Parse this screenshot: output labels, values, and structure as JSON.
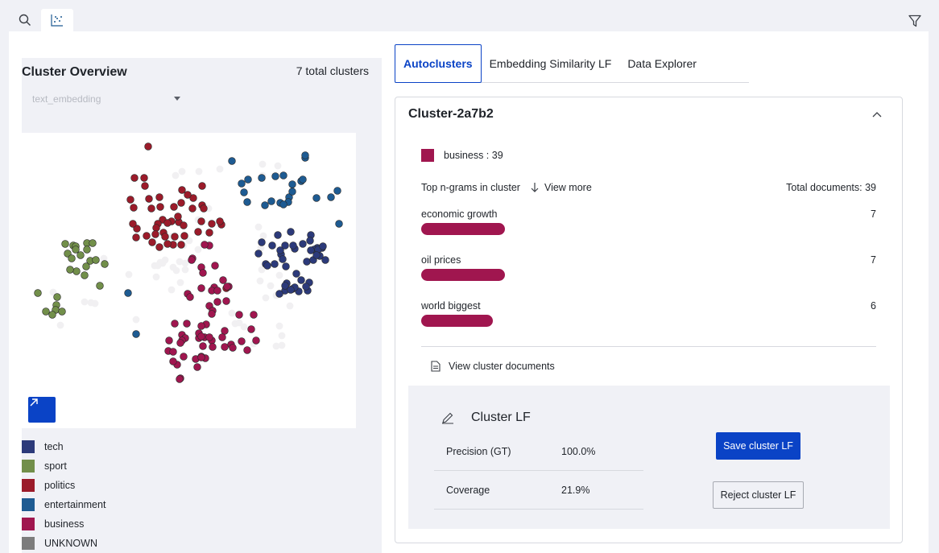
{
  "toolbar": {
    "search_icon": "search-icon",
    "scatter_icon": "scatter-plot-icon",
    "filter_icon": "filter-icon"
  },
  "overview": {
    "title": "Cluster Overview",
    "count_label": "7 total clusters",
    "embedding_select": {
      "value": "text_embedding"
    }
  },
  "legend": [
    {
      "label": "tech",
      "color": "#2c3a7a"
    },
    {
      "label": "sport",
      "color": "#728f4a"
    },
    {
      "label": "politics",
      "color": "#9b1b2a"
    },
    {
      "label": "entertainment",
      "color": "#1e5b92"
    },
    {
      "label": "business",
      "color": "#a0164f"
    },
    {
      "label": "UNKNOWN",
      "color": "#7c7c7c"
    }
  ],
  "chart_data": {
    "type": "scatter",
    "title": "",
    "xlabel": "",
    "ylabel": "",
    "grid": false,
    "series": [
      {
        "name": "sport",
        "color": "#728f4a",
        "points": [
          [
            64,
            140
          ],
          [
            67,
            141
          ],
          [
            81,
            137
          ],
          [
            88,
            137
          ],
          [
            54,
            138
          ],
          [
            57,
            150
          ],
          [
            73,
            152
          ],
          [
            67,
            145
          ],
          [
            81,
            145
          ],
          [
            62,
            156
          ],
          [
            85,
            159
          ],
          [
            92,
            158
          ],
          [
            103,
            163
          ],
          [
            80,
            166
          ],
          [
            68,
            172
          ],
          [
            20,
            199
          ],
          [
            44,
            204
          ],
          [
            43,
            214
          ],
          [
            42,
            220
          ],
          [
            30,
            222
          ],
          [
            38,
            226
          ],
          [
            50,
            222
          ],
          [
            97,
            190
          ],
          [
            60,
            170
          ],
          [
            78,
            177
          ]
        ]
      },
      {
        "name": "politics",
        "color": "#9b1b2a",
        "points": [
          [
            157,
            17
          ],
          [
            140,
            56
          ],
          [
            152,
            56
          ],
          [
            153,
            66
          ],
          [
            135,
            83
          ],
          [
            158,
            82
          ],
          [
            171,
            80
          ],
          [
            161,
            94
          ],
          [
            139,
            93
          ],
          [
            172,
            92
          ],
          [
            199,
            71
          ],
          [
            213,
            81
          ],
          [
            224,
            66
          ],
          [
            206,
            77
          ],
          [
            198,
            87
          ],
          [
            189,
            92
          ],
          [
            224,
            90
          ],
          [
            223,
            110
          ],
          [
            186,
            110
          ],
          [
            175,
            108
          ],
          [
            169,
            113
          ],
          [
            167,
            118
          ],
          [
            181,
            112
          ],
          [
            195,
            111
          ],
          [
            201,
            115
          ],
          [
            143,
            119
          ],
          [
            142,
            130
          ],
          [
            155,
            128
          ],
          [
            166,
            126
          ],
          [
            176,
            124
          ],
          [
            190,
            129
          ],
          [
            198,
            139
          ],
          [
            188,
            139
          ],
          [
            178,
            129
          ],
          [
            181,
            138
          ],
          [
            248,
            114
          ],
          [
            236,
            113
          ],
          [
            226,
            94
          ],
          [
            212,
            94
          ],
          [
            233,
            124
          ],
          [
            246,
            110
          ],
          [
            194,
            104
          ],
          [
            138,
            113
          ],
          [
            219,
            123
          ],
          [
            162,
            136
          ],
          [
            171,
            142
          ],
          [
            202,
            128
          ],
          [
            254,
            193
          ]
        ]
      },
      {
        "name": "entertainment",
        "color": "#1e5b92",
        "points": [
          [
            261,
            35
          ],
          [
            281,
            58
          ],
          [
            276,
            74
          ],
          [
            298,
            56
          ],
          [
            315,
            54
          ],
          [
            273,
            63
          ],
          [
            280,
            86
          ],
          [
            302,
            90
          ],
          [
            310,
            85
          ],
          [
            325,
            53
          ],
          [
            336,
            64
          ],
          [
            347,
            60
          ],
          [
            332,
            80
          ],
          [
            321,
            87
          ],
          [
            331,
            86
          ],
          [
            325,
            89
          ],
          [
            349,
            58
          ],
          [
            336,
            73
          ],
          [
            352,
            31
          ],
          [
            352,
            28
          ],
          [
            394,
            113
          ],
          [
            366,
            81
          ],
          [
            132,
            199
          ],
          [
            142,
            250
          ],
          [
            392,
            72
          ],
          [
            384,
            80
          ]
        ]
      },
      {
        "name": "tech",
        "color": "#2c3a7a",
        "points": [
          [
            318,
            127
          ],
          [
            311,
            140
          ],
          [
            294,
            150
          ],
          [
            303,
            163
          ],
          [
            314,
            163
          ],
          [
            305,
            165
          ],
          [
            322,
            151
          ],
          [
            324,
            157
          ],
          [
            321,
            146
          ],
          [
            327,
            140
          ],
          [
            359,
            127
          ],
          [
            339,
            144
          ],
          [
            349,
            138
          ],
          [
            328,
            166
          ],
          [
            358,
            134
          ],
          [
            334,
            123
          ],
          [
            367,
            143
          ],
          [
            370,
            153
          ],
          [
            373,
            143
          ],
          [
            354,
            160
          ],
          [
            362,
            158
          ],
          [
            377,
            158
          ],
          [
            329,
            187
          ],
          [
            327,
            196
          ],
          [
            298,
            136
          ],
          [
            341,
            175
          ],
          [
            344,
            197
          ],
          [
            357,
            186
          ],
          [
            355,
            196
          ],
          [
            320,
            200
          ],
          [
            327,
            190
          ],
          [
            336,
            194
          ],
          [
            353,
            191
          ],
          [
            347,
            183
          ],
          [
            363,
            145
          ],
          [
            359,
            146
          ],
          [
            368,
            145
          ],
          [
            366,
            152
          ],
          [
            374,
            141
          ],
          [
            337,
            140
          ],
          [
            339,
            192
          ],
          [
            334,
            195
          ]
        ]
      },
      {
        "name": "business",
        "color": "#a0164f",
        "points": [
          [
            212,
            156
          ],
          [
            223,
            167
          ],
          [
            240,
            165
          ],
          [
            250,
            183
          ],
          [
            239,
            192
          ],
          [
            236,
            196
          ],
          [
            257,
            191
          ],
          [
            255,
            191
          ],
          [
            243,
            196
          ],
          [
            225,
            174
          ],
          [
            223,
            193
          ],
          [
            243,
            210
          ],
          [
            233,
            215
          ],
          [
            237,
            221
          ],
          [
            254,
            209
          ],
          [
            229,
            238
          ],
          [
            205,
            237
          ],
          [
            199,
            251
          ],
          [
            203,
            255
          ],
          [
            220,
            255
          ],
          [
            225,
            265
          ],
          [
            220,
            249
          ],
          [
            227,
            254
          ],
          [
            228,
            280
          ],
          [
            201,
            278
          ],
          [
            199,
            258
          ],
          [
            183,
            258
          ],
          [
            190,
            237
          ],
          [
            182,
            271
          ],
          [
            188,
            272
          ],
          [
            193,
            288
          ],
          [
            197,
            305
          ],
          [
            196,
            306
          ],
          [
            236,
            258
          ],
          [
            260,
            263
          ],
          [
            252,
            266
          ],
          [
            262,
            267
          ],
          [
            273,
            259
          ],
          [
            280,
            270
          ],
          [
            218,
            291
          ],
          [
            223,
            278
          ],
          [
            216,
            281
          ],
          [
            237,
            266
          ],
          [
            188,
            284
          ],
          [
            252,
            246
          ],
          [
            223,
            240
          ],
          [
            288,
            226
          ],
          [
            270,
            226
          ],
          [
            206,
            200
          ],
          [
            209,
            204
          ],
          [
            223,
            279
          ],
          [
            249,
            254
          ],
          [
            211,
            158
          ],
          [
            233,
            140
          ],
          [
            227,
            139
          ],
          [
            285,
            244
          ],
          [
            291,
            258
          ],
          [
            223,
            253
          ],
          [
            233,
            254
          ],
          [
            197,
            261
          ],
          [
            236,
            225
          ]
        ]
      },
      {
        "name": "UNKNOWN",
        "color": "#f1f0f2",
        "points": [
          [
            191,
            53
          ],
          [
            199,
            48
          ],
          [
            246,
            45
          ],
          [
            220,
            48
          ],
          [
            299,
            39
          ],
          [
            299,
            53
          ],
          [
            318,
            41
          ],
          [
            186,
            129
          ],
          [
            219,
            108
          ],
          [
            232,
            94
          ],
          [
            219,
            145
          ],
          [
            172,
            161
          ],
          [
            165,
            165
          ],
          [
            203,
            162
          ],
          [
            203,
            170
          ],
          [
            192,
            171
          ],
          [
            208,
            134
          ],
          [
            201,
            140
          ],
          [
            133,
            176
          ],
          [
            102,
            156
          ],
          [
            86,
            211
          ],
          [
            91,
            212
          ],
          [
            48,
            239
          ],
          [
            39,
            198
          ],
          [
            78,
            210
          ],
          [
            142,
            232
          ],
          [
            294,
            117
          ],
          [
            300,
            128
          ],
          [
            296,
            184
          ],
          [
            288,
            226
          ],
          [
            303,
            205
          ],
          [
            316,
            202
          ],
          [
            324,
            199
          ],
          [
            309,
            190
          ],
          [
            320,
            177
          ],
          [
            297,
            143
          ],
          [
            298,
            170
          ],
          [
            333,
            215
          ],
          [
            320,
            240
          ],
          [
            323,
            252
          ],
          [
            323,
            264
          ],
          [
            316,
            265
          ],
          [
            261,
            224
          ],
          [
            288,
            262
          ],
          [
            270,
            236
          ],
          [
            265,
            237
          ],
          [
            276,
            241
          ],
          [
            196,
            160
          ],
          [
            188,
            167
          ],
          [
            175,
            162
          ],
          [
            169,
            165
          ],
          [
            178,
            158
          ],
          [
            167,
            179
          ],
          [
            197,
            186
          ],
          [
            186,
            195
          ]
        ]
      }
    ]
  },
  "tabs": [
    {
      "label": "Autoclusters",
      "active": true
    },
    {
      "label": "Embedding Similarity LF",
      "active": false
    },
    {
      "label": "Data Explorer",
      "active": false
    }
  ],
  "cluster": {
    "title": "Cluster-2a7b2",
    "label_summary": "business : 39",
    "ngram_header": "Top n-grams in cluster",
    "view_more": "View more",
    "total_documents": "Total documents: 39",
    "ngrams": [
      {
        "label": "economic growth",
        "count": "7",
        "fraction": 1.0
      },
      {
        "label": "oil prices",
        "count": "7",
        "fraction": 1.0
      },
      {
        "label": "world biggest",
        "count": "6",
        "fraction": 0.857
      }
    ],
    "view_docs": "View cluster documents"
  },
  "lf": {
    "title": "Cluster LF",
    "metrics": [
      {
        "name": "Precision (GT)",
        "value": "100.0%"
      },
      {
        "name": "Coverage",
        "value": "21.9%"
      }
    ],
    "save_label": "Save cluster LF",
    "reject_label": "Reject cluster LF"
  }
}
